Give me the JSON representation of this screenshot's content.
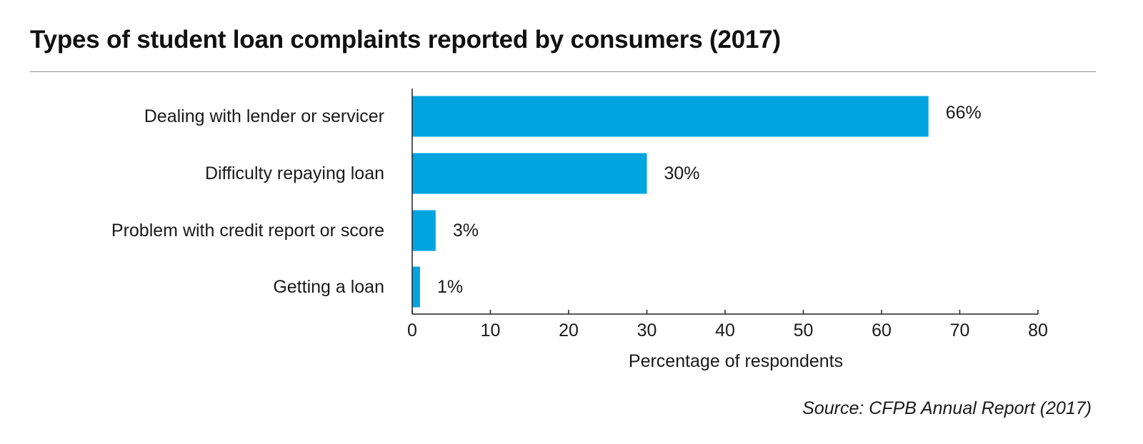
{
  "header": {
    "title": "Types of student loan complaints reported by consumers (2017)"
  },
  "footer": {
    "source": "Source: CFPB Annual Report (2017)"
  },
  "colors": {
    "bar": "#00a5e0",
    "axis": "#222222",
    "text": "#1a1a1a"
  },
  "chart_data": {
    "type": "bar",
    "orientation": "horizontal",
    "title": "Types of student loan complaints reported by consumers (2017)",
    "categories": [
      "Dealing with lender or servicer",
      "Difficulty repaying loan",
      "Problem with credit report or score",
      "Getting a loan"
    ],
    "values": [
      66,
      30,
      3,
      1
    ],
    "data_labels": [
      "66%",
      "30%",
      "3%",
      "1%"
    ],
    "xlabel": "Percentage of respondents",
    "ylabel": "",
    "xlim": [
      0,
      80
    ],
    "xticks": [
      0,
      10,
      20,
      30,
      40,
      50,
      60,
      70,
      80
    ],
    "grid": false,
    "legend": "none"
  }
}
